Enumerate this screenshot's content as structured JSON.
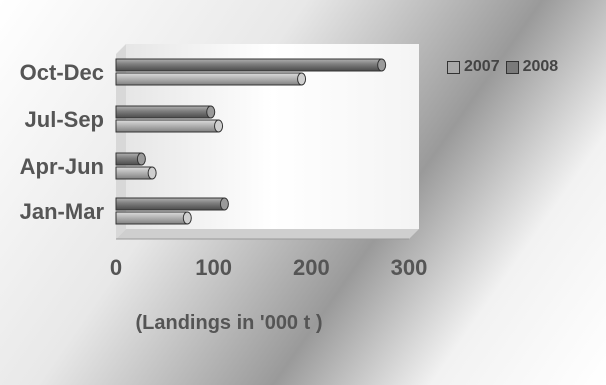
{
  "chart_data": {
    "type": "bar",
    "orientation": "horizontal",
    "style": "3d-cylinder",
    "categories": [
      "Jan-Mar",
      "Apr-Jun",
      "Jul-Sep",
      "Oct-Dec"
    ],
    "series": [
      {
        "name": "2007",
        "values": [
          73,
          37,
          105,
          190
        ],
        "color": "#a8a8a8"
      },
      {
        "name": "2008",
        "values": [
          111,
          26,
          97,
          272
        ],
        "color": "#7a7a7a"
      }
    ],
    "xticks": [
      "0",
      "100",
      "200",
      "300"
    ],
    "xlim": [
      0,
      300
    ],
    "xlabel": "(Landings in '000 t )",
    "legend_position": "top-right",
    "grid": false
  }
}
